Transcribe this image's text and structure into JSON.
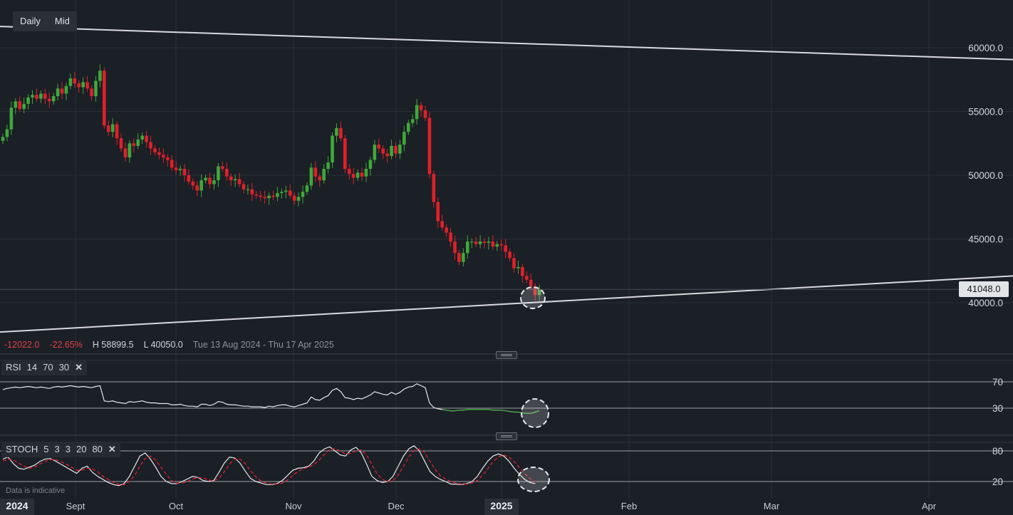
{
  "toolbar": {
    "interval_label": "Daily",
    "price_type_label": "Mid"
  },
  "stats": {
    "change": "-12022.0",
    "change_pct": "-22.65%",
    "high": "H 58899.5",
    "low": "L 40050.0",
    "range": "Tue 13 Aug 2024 - Thu 17 Apr 2025"
  },
  "current_price": "41048.0",
  "rsi_label": {
    "name": "RSI",
    "p1": "14",
    "p2": "70",
    "p3": "30"
  },
  "stoch_label": {
    "name": "STOCH",
    "p1": "5",
    "p2": "3",
    "p3": "3",
    "p4": "20",
    "p5": "80"
  },
  "disclaimer": "Data is indicative",
  "colors": {
    "up": "#3fa83b",
    "down": "#e0202a",
    "background": "#1b1f26",
    "grid": "#2a2f37"
  },
  "chart_data": {
    "type": "candlestick",
    "price_axis": {
      "ticks": [
        40000,
        45000,
        50000,
        55000,
        60000
      ],
      "tick_labels": [
        "40000.0",
        "45000.0",
        "50000.0",
        "55000.0",
        "60000.0"
      ]
    },
    "time_axis": {
      "labels": [
        "2024",
        "Sept",
        "Oct",
        "Nov",
        "Dec",
        "2025",
        "Feb",
        "Mar",
        "Apr"
      ]
    },
    "trendlines": [
      {
        "from": [
          "2024-08-13",
          61000
        ],
        "to": [
          "2025-04-17",
          58400
        ]
      },
      {
        "from": [
          "2024-08-13",
          37700
        ],
        "to": [
          "2025-04-17",
          42100
        ]
      }
    ],
    "close_series": [
      53000,
      53600,
      55300,
      55800,
      55200,
      55600,
      56100,
      56300,
      56000,
      56400,
      56000,
      55800,
      56200,
      56800,
      56400,
      57000,
      57600,
      57200,
      56900,
      57300,
      56800,
      56200,
      57400,
      58200,
      53900,
      53400,
      54000,
      52900,
      52100,
      51400,
      52500,
      52300,
      52800,
      53100,
      52600,
      52100,
      51800,
      51600,
      51400,
      51200,
      50600,
      50400,
      50500,
      50000,
      49500,
      49200,
      48800,
      49600,
      49800,
      49300,
      49600,
      50700,
      50500,
      49900,
      49600,
      49700,
      49300,
      48900,
      48900,
      48500,
      48400,
      48300,
      48200,
      48400,
      48300,
      48600,
      48700,
      48800,
      48400,
      48000,
      48300,
      48700,
      49200,
      50600,
      49900,
      49600,
      50500,
      51000,
      53100,
      53700,
      52900,
      50500,
      50100,
      49800,
      50200,
      49900,
      50500,
      51200,
      52400,
      52100,
      51700,
      51500,
      52300,
      51700,
      52400,
      53400,
      54100,
      54400,
      55500,
      55100,
      54500,
      50100,
      47900,
      46400,
      45900,
      45500,
      44800,
      43900,
      43200,
      43900,
      44800,
      44800,
      44600,
      44800,
      44700,
      44800,
      44400,
      44600,
      44500,
      44000,
      43500,
      42700,
      42800,
      42100,
      41800,
      41300,
      40600,
      41048
    ],
    "rsi": {
      "levels": [
        30,
        70
      ],
      "values": [
        58,
        60,
        61,
        62,
        61,
        62,
        63,
        62,
        61,
        62,
        61,
        60,
        62,
        63,
        62,
        63,
        64,
        63,
        62,
        63,
        62,
        61,
        63,
        64,
        41,
        40,
        41,
        39,
        38,
        37,
        40,
        39,
        40,
        41,
        39,
        38,
        38,
        37,
        37,
        37,
        35,
        35,
        36,
        34,
        33,
        33,
        32,
        36,
        36,
        34,
        36,
        40,
        39,
        36,
        35,
        35,
        34,
        33,
        33,
        32,
        32,
        32,
        31,
        33,
        32,
        34,
        35,
        35,
        33,
        32,
        34,
        36,
        38,
        47,
        43,
        42,
        46,
        49,
        57,
        60,
        55,
        46,
        45,
        43,
        45,
        44,
        47,
        50,
        55,
        53,
        51,
        50,
        54,
        51,
        54,
        59,
        62,
        63,
        67,
        64,
        61,
        38,
        31,
        29,
        28,
        27,
        26,
        26,
        27,
        27,
        28,
        28,
        28,
        28,
        28,
        28,
        27,
        27,
        27,
        26,
        25,
        24,
        24,
        23,
        22,
        22,
        24,
        26
      ],
      "signal_values": [
        21,
        21,
        22,
        23,
        24,
        25
      ]
    },
    "stochastic": {
      "levels": [
        20,
        80
      ],
      "k_values": [
        64,
        68,
        55,
        46,
        44,
        48,
        52,
        59,
        64,
        65,
        60,
        54,
        48,
        42,
        36,
        46,
        50,
        38,
        30,
        24,
        18,
        14,
        12,
        16,
        30,
        50,
        70,
        76,
        64,
        48,
        30,
        20,
        16,
        16,
        20,
        25,
        30,
        28,
        22,
        20,
        22,
        38,
        56,
        68,
        66,
        56,
        40,
        26,
        20,
        17,
        14,
        14,
        16,
        22,
        32,
        42,
        46,
        47,
        50,
        60,
        76,
        84,
        88,
        80,
        72,
        70,
        82,
        87,
        76,
        54,
        30,
        22,
        18,
        20,
        30,
        50,
        70,
        84,
        90,
        80,
        60,
        40,
        30,
        24,
        20,
        15,
        15,
        14,
        16,
        20,
        30,
        46,
        60,
        70,
        74,
        70,
        60,
        46,
        34,
        24,
        18,
        16
      ],
      "d_values": [
        60,
        64,
        62,
        56,
        50,
        46,
        48,
        54,
        59,
        63,
        63,
        59,
        54,
        48,
        42,
        42,
        46,
        45,
        39,
        30,
        24,
        18,
        14,
        14,
        20,
        32,
        50,
        65,
        70,
        62,
        48,
        34,
        22,
        17,
        17,
        20,
        25,
        28,
        27,
        23,
        21,
        27,
        39,
        54,
        64,
        64,
        55,
        41,
        29,
        21,
        17,
        15,
        15,
        17,
        23,
        32,
        40,
        45,
        48,
        53,
        62,
        73,
        83,
        84,
        80,
        74,
        75,
        80,
        82,
        72,
        53,
        35,
        24,
        20,
        22,
        33,
        50,
        68,
        81,
        84,
        77,
        60,
        44,
        31,
        25,
        20,
        17,
        15,
        15,
        17,
        22,
        32,
        45,
        59,
        68,
        72,
        68,
        59,
        47,
        35,
        26,
        19
      ]
    }
  }
}
